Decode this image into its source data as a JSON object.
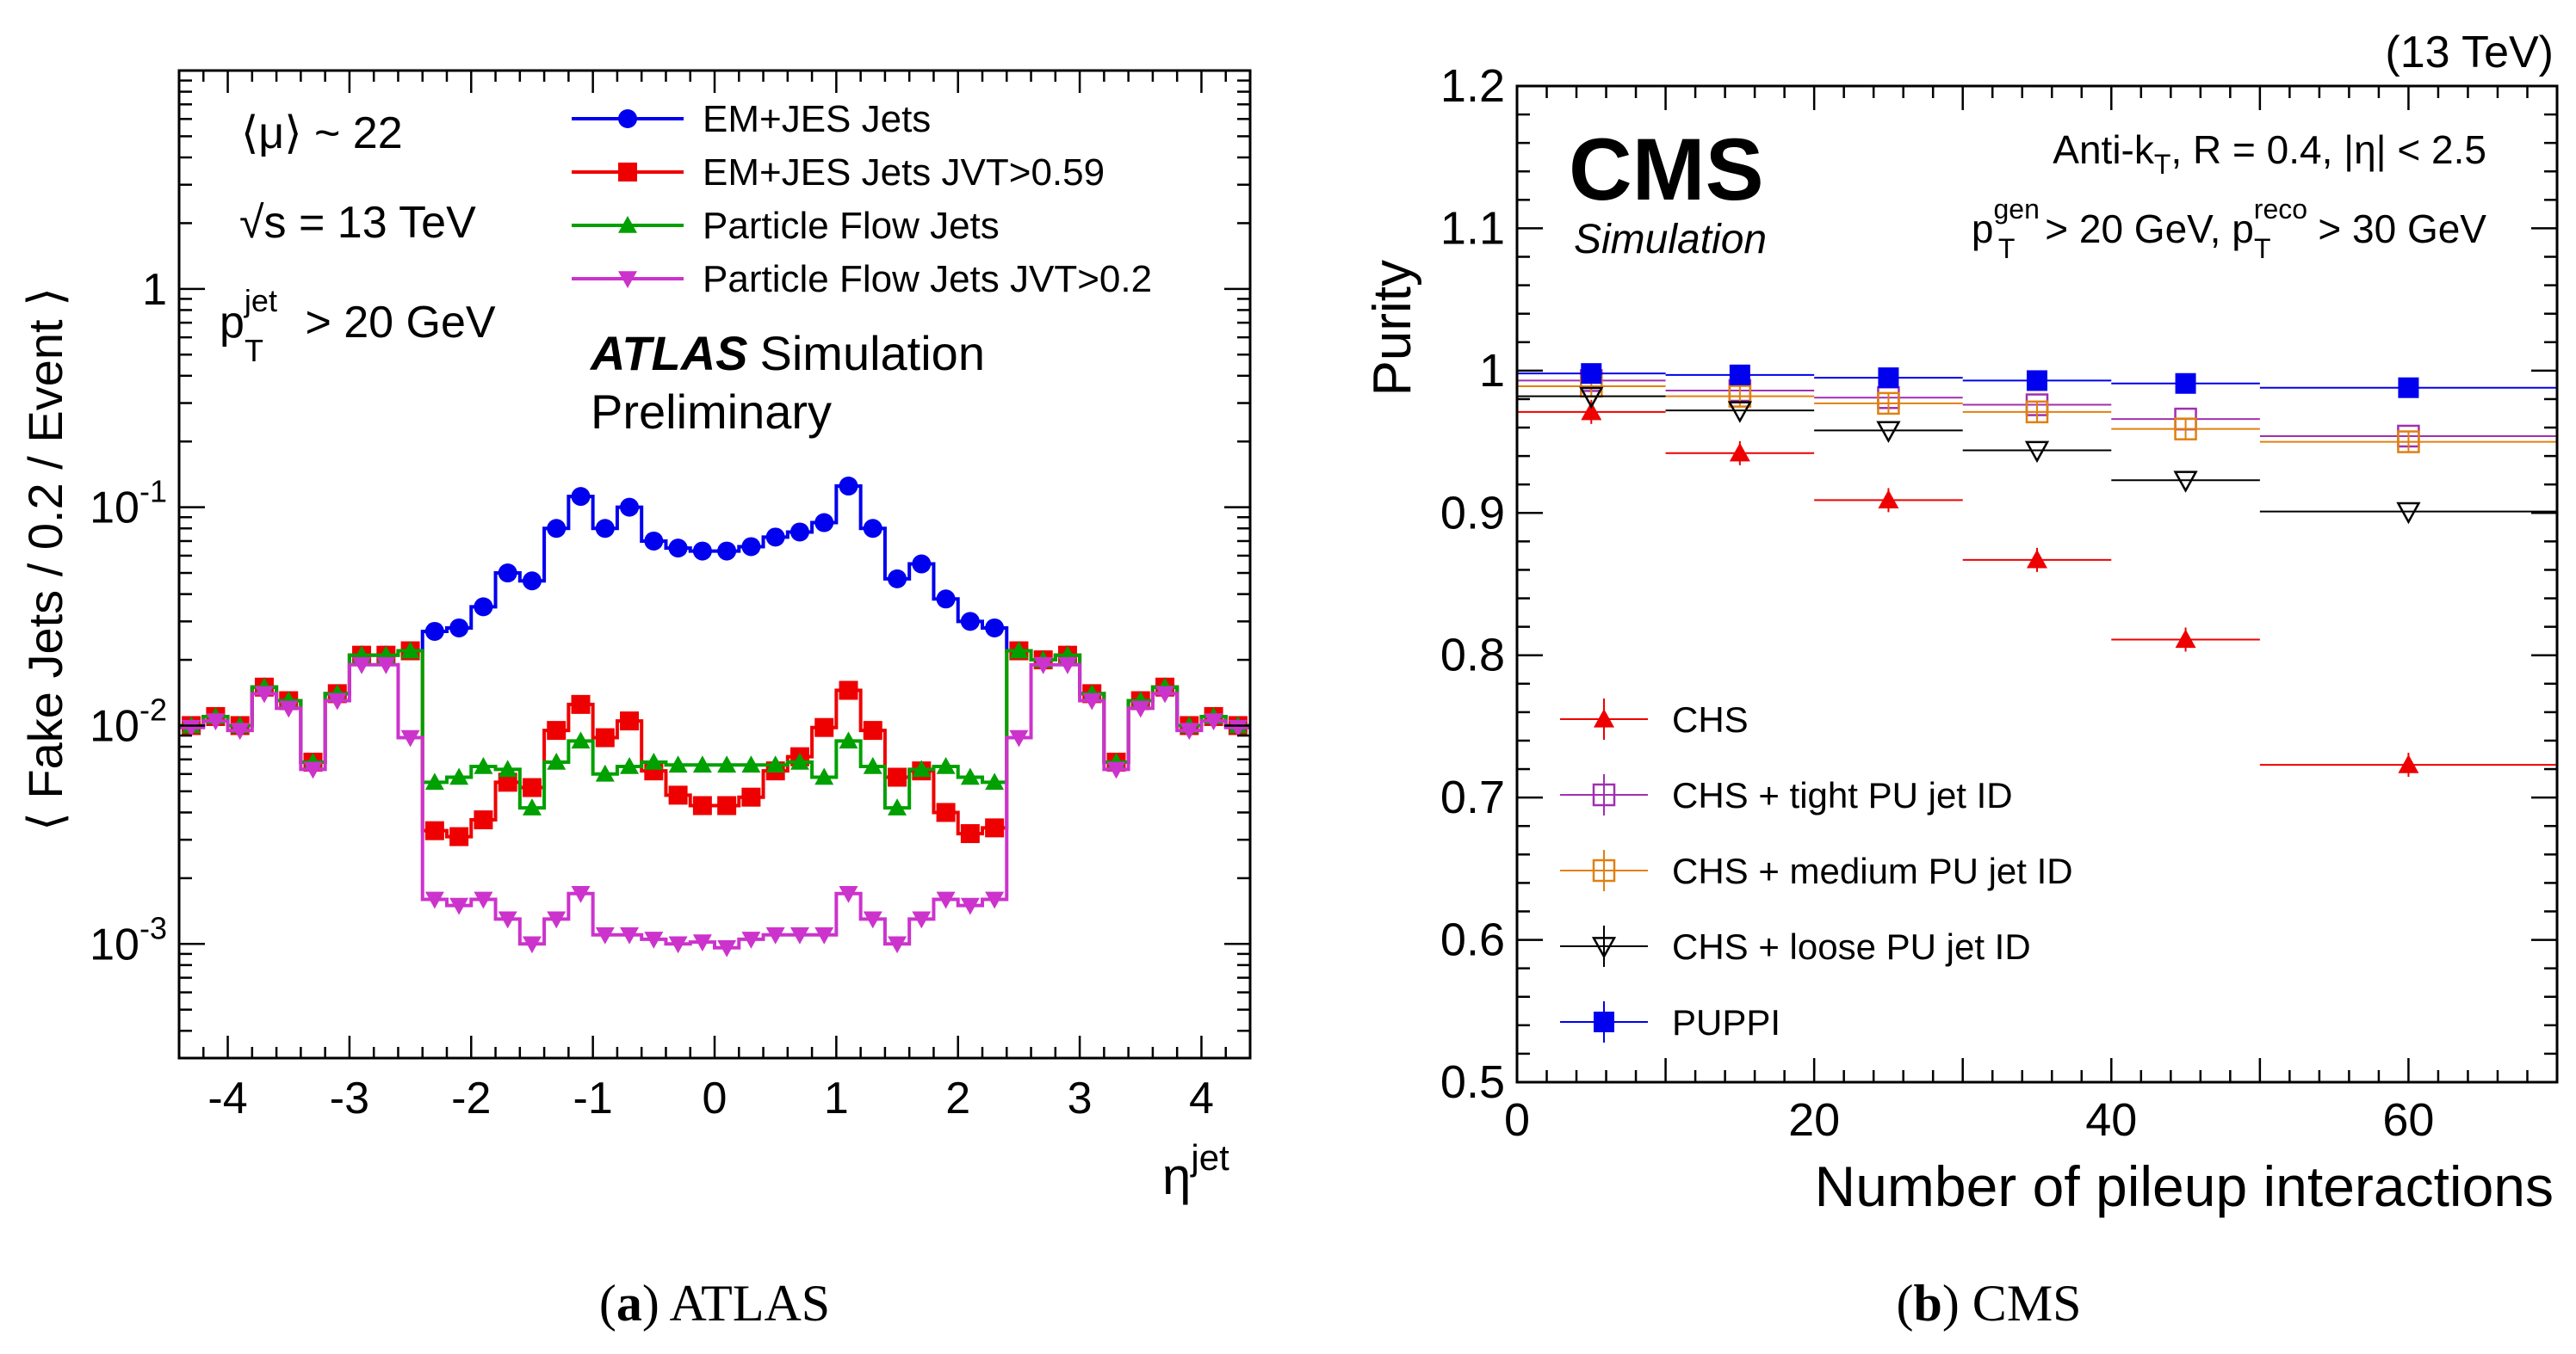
{
  "chart_data": [
    {
      "type": "line",
      "panel": "atlas",
      "ylabel": "⟨ Fake Jets / 0.2 / Event ⟩",
      "xlabel": "η",
      "xlabel_sup": "jet",
      "yscale": "log",
      "xlim": [
        -4.4,
        4.4
      ],
      "ylim": [
        0.0003,
        10
      ],
      "x_ticks": [
        "-4",
        "-3",
        "-2",
        "-1",
        "0",
        "1",
        "2",
        "3",
        "4"
      ],
      "y_ticks": [
        {
          "base": "10",
          "exp": "-3"
        },
        {
          "base": "10",
          "exp": "-2"
        },
        {
          "base": "10",
          "exp": "-1"
        },
        {
          "base": "1",
          "exp": ""
        }
      ],
      "annotations": {
        "mu": "⟨μ⟩ ~ 22",
        "sqrts": "√s = 13 TeV",
        "pt_p": "p",
        "pt_sup": "jet",
        "pt_sub": "T",
        "pt_rest": " > 20 GeV",
        "atlas": "ATLAS",
        "simulation": "Simulation",
        "preliminary": "Preliminary"
      },
      "x": [
        -4.3,
        -4.1,
        -3.9,
        -3.7,
        -3.5,
        -3.3,
        -3.1,
        -2.9,
        -2.7,
        -2.5,
        -2.3,
        -2.1,
        -1.9,
        -1.7,
        -1.5,
        -1.3,
        -1.1,
        -0.9,
        -0.7,
        -0.5,
        -0.3,
        -0.1,
        0.1,
        0.3,
        0.5,
        0.7,
        0.9,
        1.1,
        1.3,
        1.5,
        1.7,
        1.9,
        2.1,
        2.3,
        2.5,
        2.7,
        2.9,
        3.1,
        3.3,
        3.5,
        3.7,
        3.9,
        4.1,
        4.3
      ],
      "series": [
        {
          "name": "EM+JES Jets",
          "color": "#0000ee",
          "marker": "circle",
          "values": [
            0.01,
            0.011,
            0.01,
            0.015,
            0.013,
            0.0068,
            0.014,
            0.021,
            0.021,
            0.022,
            0.027,
            0.028,
            0.035,
            0.05,
            0.046,
            0.08,
            0.112,
            0.08,
            0.1,
            0.07,
            0.065,
            0.063,
            0.063,
            0.066,
            0.073,
            0.077,
            0.085,
            0.125,
            0.08,
            0.047,
            0.055,
            0.038,
            0.03,
            0.028,
            0.022,
            0.02,
            0.021,
            0.014,
            0.0068,
            0.013,
            0.015,
            0.01,
            0.011,
            0.01
          ]
        },
        {
          "name": "EM+JES Jets JVT>0.59",
          "color": "#ee0000",
          "marker": "square",
          "values": [
            0.01,
            0.011,
            0.01,
            0.015,
            0.013,
            0.0068,
            0.014,
            0.021,
            0.021,
            0.022,
            0.0033,
            0.0031,
            0.0037,
            0.0055,
            0.0052,
            0.0095,
            0.0125,
            0.0088,
            0.0105,
            0.0062,
            0.0048,
            0.0043,
            0.0043,
            0.0047,
            0.0062,
            0.0072,
            0.0098,
            0.0145,
            0.0095,
            0.0058,
            0.0062,
            0.004,
            0.0032,
            0.0034,
            0.022,
            0.02,
            0.021,
            0.014,
            0.0068,
            0.013,
            0.015,
            0.01,
            0.011,
            0.01
          ]
        },
        {
          "name": "Particle Flow Jets",
          "color": "#00a000",
          "marker": "triangle-up",
          "values": [
            0.01,
            0.011,
            0.01,
            0.015,
            0.013,
            0.0068,
            0.014,
            0.021,
            0.021,
            0.022,
            0.0055,
            0.0058,
            0.0065,
            0.0063,
            0.0042,
            0.0068,
            0.0085,
            0.006,
            0.0065,
            0.0068,
            0.0066,
            0.0066,
            0.0066,
            0.0066,
            0.0066,
            0.0068,
            0.0058,
            0.0085,
            0.0065,
            0.0042,
            0.0063,
            0.0065,
            0.0058,
            0.0055,
            0.022,
            0.02,
            0.021,
            0.014,
            0.0068,
            0.013,
            0.015,
            0.01,
            0.011,
            0.01
          ]
        },
        {
          "name": "Particle Flow Jets JVT>0.2",
          "color": "#cc33cc",
          "marker": "triangle-down",
          "values": [
            0.0098,
            0.0105,
            0.0095,
            0.014,
            0.012,
            0.0063,
            0.013,
            0.019,
            0.019,
            0.0088,
            0.0016,
            0.0015,
            0.0016,
            0.0013,
            0.001,
            0.0013,
            0.0017,
            0.0011,
            0.0011,
            0.00105,
            0.001,
            0.00102,
            0.00096,
            0.00105,
            0.0011,
            0.0011,
            0.0011,
            0.0017,
            0.0013,
            0.001,
            0.0013,
            0.0016,
            0.0015,
            0.0016,
            0.0088,
            0.019,
            0.019,
            0.013,
            0.0063,
            0.012,
            0.014,
            0.0095,
            0.0105,
            0.0098
          ]
        }
      ]
    },
    {
      "type": "scatter",
      "panel": "cms",
      "ylabel": "Purity",
      "xlabel": "Number of pileup interactions",
      "xlim": [
        0,
        70
      ],
      "ylim": [
        0.5,
        1.2
      ],
      "x_ticks": [
        "0",
        "20",
        "40",
        "60"
      ],
      "y_ticks": [
        "0.5",
        "0.6",
        "0.7",
        "0.8",
        "0.9",
        "1",
        "1.1",
        "1.2"
      ],
      "annotations": {
        "energy": "(13 TeV)",
        "cms": "CMS",
        "simulation": "Simulation",
        "antikt_a": "Anti-k",
        "antikt_sub": "T",
        "antikt_b": ", R = 0.4, |η| < 2.5",
        "cut_p1": "p",
        "cut_sup1": "gen",
        "cut_sub1": "T",
        "cut_mid": " > 20 GeV, p",
        "cut_sup2": "reco",
        "cut_sub2": "T",
        "cut_end": " > 30 GeV"
      },
      "bins": [
        [
          0,
          10
        ],
        [
          10,
          20
        ],
        [
          20,
          30
        ],
        [
          30,
          40
        ],
        [
          40,
          50
        ],
        [
          50,
          70
        ]
      ],
      "x": [
        5,
        15,
        25,
        35,
        45,
        60
      ],
      "series": [
        {
          "name": "CHS",
          "color": "#ee0000",
          "marker": "triangle-up-filled",
          "values": [
            0.971,
            0.942,
            0.909,
            0.867,
            0.811,
            0.723
          ]
        },
        {
          "name": "CHS + tight PU jet ID",
          "color": "#a030b0",
          "marker": "square-open",
          "values": [
            0.993,
            0.986,
            0.981,
            0.976,
            0.966,
            0.954
          ]
        },
        {
          "name": "CHS + medium PU jet ID",
          "color": "#e08010",
          "marker": "cross-square",
          "values": [
            0.989,
            0.982,
            0.977,
            0.971,
            0.959,
            0.95
          ]
        },
        {
          "name": "CHS + loose PU jet ID",
          "color": "#000000",
          "marker": "triangle-down-open",
          "values": [
            0.982,
            0.972,
            0.958,
            0.944,
            0.923,
            0.901
          ]
        },
        {
          "name": "PUPPI",
          "color": "#0000ee",
          "marker": "square-filled",
          "values": [
            0.998,
            0.997,
            0.995,
            0.993,
            0.991,
            0.988
          ]
        }
      ]
    }
  ],
  "captions": {
    "a_label": "a",
    "a_text": "ATLAS",
    "b_label": "b",
    "b_text": "CMS"
  }
}
